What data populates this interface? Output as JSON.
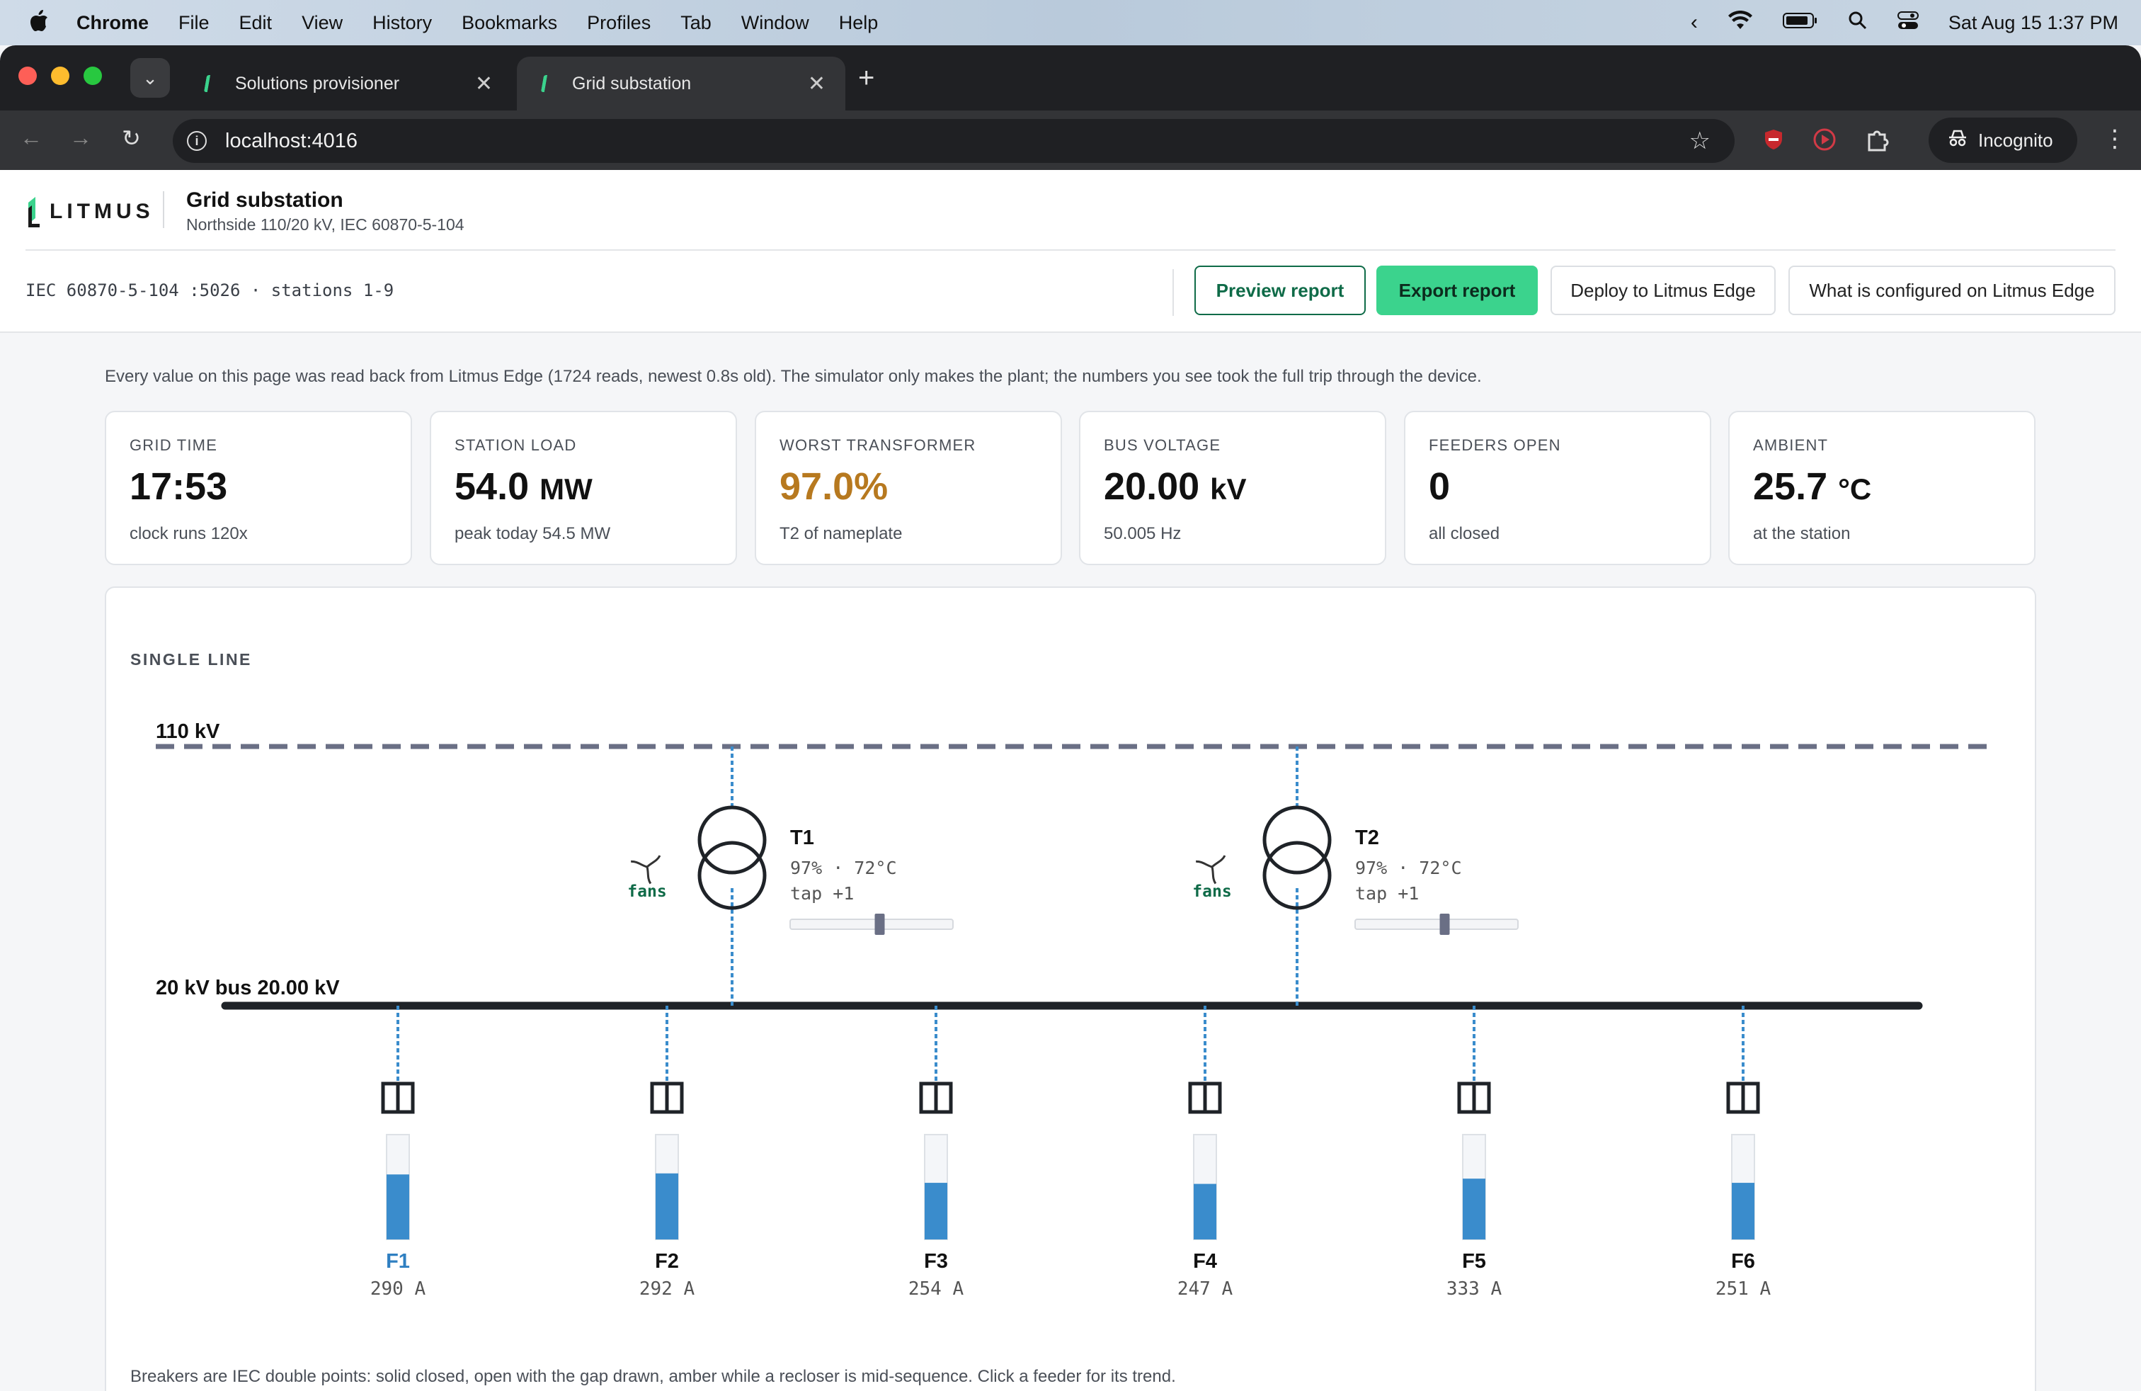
{
  "menubar": {
    "app": "Chrome",
    "items": [
      "File",
      "Edit",
      "View",
      "History",
      "Bookmarks",
      "Profiles",
      "Tab",
      "Window",
      "Help"
    ],
    "datetime": "Sat Aug 15  1:37 PM"
  },
  "browser": {
    "tabs": [
      {
        "title": "Solutions provisioner",
        "active": false
      },
      {
        "title": "Grid substation",
        "active": true
      }
    ],
    "url": "localhost:4016",
    "profile_label": "Incognito"
  },
  "header": {
    "logo_text": "LITMUS",
    "title": "Grid substation",
    "subtitle": "Northside 110/20 kV, IEC 60870-5-104",
    "protocol": "IEC 60870-5-104 :5026 · stations 1-9",
    "buttons": {
      "preview": "Preview report",
      "export": "Export report",
      "deploy": "Deploy to Litmus Edge",
      "configured": "What is configured on Litmus Edge"
    }
  },
  "notice": "Every value on this page was read back from Litmus Edge (1724 reads, newest 0.8s old). The simulator only makes the plant; the numbers you see took the full trip through the device.",
  "kpis": [
    {
      "label": "GRID TIME",
      "value": "17:53",
      "unit": "",
      "sub": "clock runs 120x",
      "color": "#111111"
    },
    {
      "label": "STATION LOAD",
      "value": "54.0",
      "unit": "MW",
      "sub": "peak today 54.5 MW",
      "color": "#111111"
    },
    {
      "label": "WORST TRANSFORMER",
      "value": "97.0%",
      "unit": "",
      "sub": "T2 of nameplate",
      "color": "#b7791f"
    },
    {
      "label": "BUS VOLTAGE",
      "value": "20.00",
      "unit": "kV",
      "sub": "50.005 Hz",
      "color": "#111111"
    },
    {
      "label": "FEEDERS OPEN",
      "value": "0",
      "unit": "",
      "sub": "all closed",
      "color": "#111111"
    },
    {
      "label": "AMBIENT",
      "value": "25.7",
      "unit": "°C",
      "sub": "at the station",
      "color": "#111111"
    }
  ],
  "single_line": {
    "heading": "SINGLE LINE",
    "hv_bus_label": "110 kV",
    "lv_bus_label": "20 kV bus 20.00 kV",
    "fan_label": "fans",
    "transformers": [
      {
        "name": "T1",
        "stats": "97% · 72°C",
        "tap": "tap +1",
        "tap_position": 0.55
      },
      {
        "name": "T2",
        "stats": "97% · 72°C",
        "tap": "tap +1",
        "tap_position": 0.55
      }
    ],
    "feeders": [
      {
        "name": "F1",
        "current": "290 A",
        "fill": 0.62,
        "selected": true
      },
      {
        "name": "F2",
        "current": "292 A",
        "fill": 0.63,
        "selected": false
      },
      {
        "name": "F3",
        "current": "254 A",
        "fill": 0.54,
        "selected": false
      },
      {
        "name": "F4",
        "current": "247 A",
        "fill": 0.53,
        "selected": false
      },
      {
        "name": "F5",
        "current": "333 A",
        "fill": 0.58,
        "selected": false
      },
      {
        "name": "F6",
        "current": "251 A",
        "fill": 0.54,
        "selected": false
      }
    ],
    "note": "Breakers are IEC double points: solid closed, open with the gap drawn, amber while a recloser is mid-sequence. Click a feeder for its trend."
  },
  "colors": {
    "accent_green": "#3bd38d",
    "warning_amber": "#b7791f",
    "bar_blue": "#3a8ccc",
    "bus_dark": "#1f2328",
    "hv_bus_gray": "#6a6f85"
  }
}
